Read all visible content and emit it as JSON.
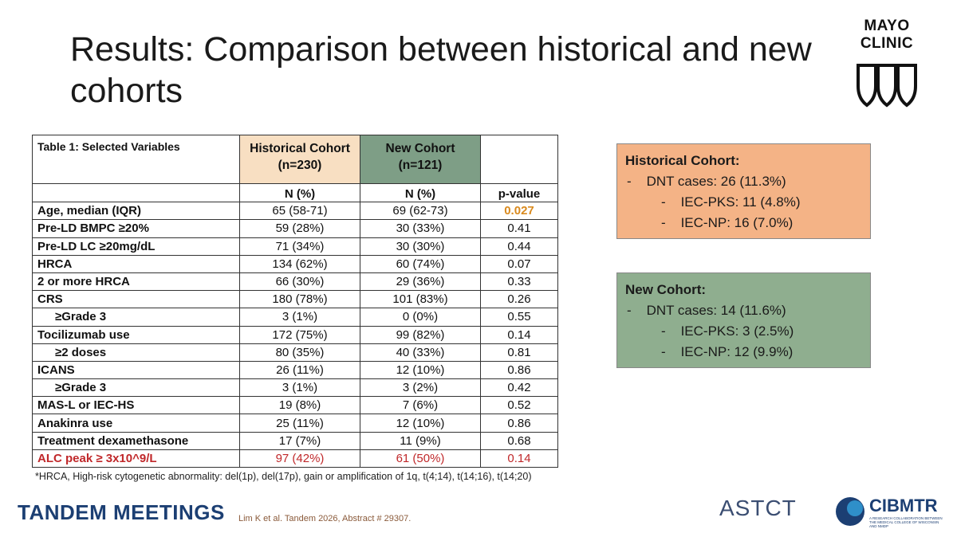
{
  "title": "Results: Comparison between historical and new cohorts",
  "logo": {
    "top": "MAYO",
    "bottom": "CLINIC"
  },
  "table": {
    "caption": "Table 1: Selected Variables",
    "historical_header": "Historical Cohort",
    "historical_n": "(n=230)",
    "new_header": "New Cohort",
    "new_n": "(n=121)",
    "col_n": "N (%)",
    "col_p": "p-value",
    "rows": [
      {
        "label": "Age, median (IQR)",
        "hist": "65 (58-71)",
        "new": "69 (62-73)",
        "p": "0.027"
      },
      {
        "label": "Pre-LD BMPC ≥20%",
        "hist": "59 (28%)",
        "new": "30 (33%)",
        "p": "0.41"
      },
      {
        "label": "Pre-LD LC ≥20mg/dL",
        "hist": "71 (34%)",
        "new": "30 (30%)",
        "p": "0.44"
      },
      {
        "label": "HRCA",
        "hist": "134 (62%)",
        "new": "60 (74%)",
        "p": "0.07"
      },
      {
        "label": "2 or more HRCA",
        "hist": "66 (30%)",
        "new": "29 (36%)",
        "p": "0.33"
      },
      {
        "label": "CRS",
        "hist": "180 (78%)",
        "new": "101 (83%)",
        "p": "0.26"
      },
      {
        "label": "≥Grade 3",
        "hist": "3 (1%)",
        "new": "0 (0%)",
        "p": "0.55"
      },
      {
        "label": "Tocilizumab use",
        "hist": "172 (75%)",
        "new": "99 (82%)",
        "p": "0.14"
      },
      {
        "label": "≥2 doses",
        "hist": "80 (35%)",
        "new": "40 (33%)",
        "p": "0.81"
      },
      {
        "label": "ICANS",
        "hist": "26 (11%)",
        "new": "12 (10%)",
        "p": "0.86"
      },
      {
        "label": "≥Grade 3",
        "hist": "3 (1%)",
        "new": "3 (2%)",
        "p": "0.42"
      },
      {
        "label": "MAS-L or IEC-HS",
        "hist": "19 (8%)",
        "new": "7 (6%)",
        "p": "0.52"
      },
      {
        "label": "Anakinra use",
        "hist": "25 (11%)",
        "new": "12 (10%)",
        "p": "0.86"
      },
      {
        "label": "Treatment dexamethasone",
        "hist": "17 (7%)",
        "new": "11 (9%)",
        "p": "0.68"
      },
      {
        "label": "ALC peak ≥ 3x10^9/L",
        "hist": "97 (42%)",
        "new": "61 (50%)",
        "p": "0.14"
      }
    ]
  },
  "footnote": "*HRCA, High-risk cytogenetic abnormality: del(1p), del(17p), gain or amplification of 1q, t(4;14), t(14;16), t(14;20)",
  "historical_box": {
    "title": "Historical Cohort:",
    "line1": "DNT cases: 26 (11.3%)",
    "line2": "IEC-PKS: 11 (4.8%)",
    "line3": "IEC-NP: 16 (7.0%)"
  },
  "new_box": {
    "title": "New Cohort:",
    "line1": "DNT cases: 14 (11.6%)",
    "line2": "IEC-PKS: 3 (2.5%)",
    "line3": "IEC-NP: 12 (9.9%)"
  },
  "bullet": "-",
  "footer": {
    "tandem": "TANDEM MEETINGS",
    "citation": "Lim K et al. Tandem 2026, Abstract # 29307.",
    "astct": "ASTCT",
    "cibmtr": "CIBMTR",
    "cibmtr_sub": "A RESEARCH COLLABORATION BETWEEN THE MEDICAL COLLEGE OF WISCONSIN AND NMDP"
  },
  "colors": {
    "historical": "#f4b386",
    "new": "#8fae8f",
    "significant": "#d98a1e",
    "highlight_row": "#c0282a",
    "footer_blue": "#1c3f73"
  }
}
